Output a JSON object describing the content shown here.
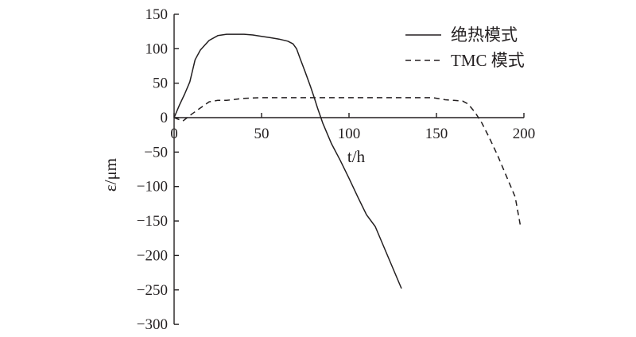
{
  "chart_data": {
    "type": "line",
    "xlabel": "t/h",
    "ylabel": "ε/μm",
    "xlim": [
      0,
      200
    ],
    "ylim": [
      -300,
      150
    ],
    "xticks": [
      0,
      50,
      100,
      150,
      200
    ],
    "yticks": [
      150,
      100,
      50,
      0,
      -50,
      -100,
      -150,
      -200,
      -250,
      -300
    ],
    "grid": false,
    "legend_position": "top-right",
    "series": [
      {
        "name": "绝热模式",
        "style": "solid",
        "color": "#231f20",
        "x": [
          0,
          3,
          6,
          9,
          12,
          15,
          20,
          25,
          30,
          35,
          40,
          45,
          50,
          55,
          60,
          65,
          68,
          70,
          72,
          75,
          78,
          80,
          82,
          85,
          90,
          95,
          100,
          105,
          110,
          115,
          120,
          125,
          130
        ],
        "y": [
          0,
          18,
          34,
          52,
          84,
          98,
          112,
          119,
          121,
          121,
          121,
          120,
          118,
          116,
          114,
          111,
          107,
          100,
          86,
          66,
          45,
          30,
          14,
          -8,
          -38,
          -62,
          -88,
          -115,
          -141,
          -158,
          -188,
          -218,
          -248
        ]
      },
      {
        "name": "TMC 模式",
        "style": "dashed",
        "color": "#231f20",
        "x": [
          0,
          5,
          10,
          15,
          20,
          25,
          30,
          40,
          50,
          60,
          80,
          100,
          120,
          140,
          148,
          155,
          160,
          165,
          168,
          172,
          176,
          180,
          185,
          190,
          195,
          198
        ],
        "y": [
          0,
          -5,
          5,
          14,
          23,
          25,
          25,
          28,
          29,
          29,
          29,
          29,
          29,
          29,
          29,
          26,
          25,
          24,
          20,
          8,
          -8,
          -28,
          -55,
          -85,
          -115,
          -157
        ]
      }
    ]
  }
}
